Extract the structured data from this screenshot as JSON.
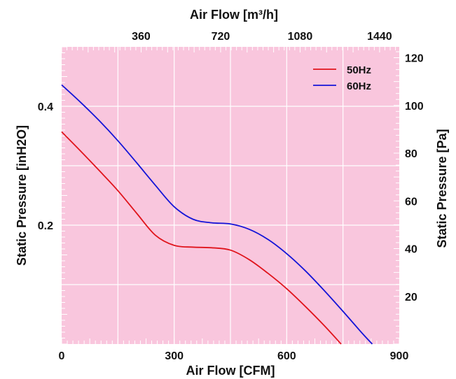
{
  "chart_data": {
    "type": "line",
    "title": "",
    "xlabel": "Air Flow  [CFM]",
    "x2label": "Air Flow  [m³/h]",
    "ylabel": "Static Pressure [inH2O]",
    "y2label": "Static Pressure [Pa]",
    "xlim": [
      0,
      900
    ],
    "ylim": [
      0,
      0.5
    ],
    "x_ticks": [
      {
        "value": 0,
        "label": "0"
      },
      {
        "value": 300,
        "label": "300"
      },
      {
        "value": 600,
        "label": "600"
      },
      {
        "value": 900,
        "label": "900"
      }
    ],
    "y_ticks": [
      {
        "value": 0.2,
        "label": "0.2"
      },
      {
        "value": 0.4,
        "label": "0.4"
      }
    ],
    "x2_ticks": [
      {
        "value": 360,
        "label": "360"
      },
      {
        "value": 720,
        "label": "720"
      },
      {
        "value": 1080,
        "label": "1080"
      },
      {
        "value": 1440,
        "label": "1440"
      }
    ],
    "y2_ticks": [
      {
        "value": 20,
        "label": "20"
      },
      {
        "value": 40,
        "label": "40"
      },
      {
        "value": 60,
        "label": "60"
      },
      {
        "value": 80,
        "label": "80"
      },
      {
        "value": 100,
        "label": "100"
      },
      {
        "value": 120,
        "label": "120"
      }
    ],
    "grid": true,
    "legend": "top-right",
    "background_color": "#f9c6dd",
    "series": [
      {
        "name": "50Hz",
        "color": "#e0141c",
        "points": [
          [
            0,
            0.357
          ],
          [
            50,
            0.325
          ],
          [
            100,
            0.292
          ],
          [
            150,
            0.258
          ],
          [
            200,
            0.22
          ],
          [
            250,
            0.183
          ],
          [
            300,
            0.166
          ],
          [
            350,
            0.163
          ],
          [
            400,
            0.162
          ],
          [
            450,
            0.158
          ],
          [
            500,
            0.142
          ],
          [
            550,
            0.119
          ],
          [
            600,
            0.093
          ],
          [
            650,
            0.063
          ],
          [
            700,
            0.031
          ],
          [
            745,
            0.0
          ]
        ]
      },
      {
        "name": "60Hz",
        "color": "#1414d8",
        "points": [
          [
            0,
            0.436
          ],
          [
            50,
            0.407
          ],
          [
            100,
            0.376
          ],
          [
            150,
            0.342
          ],
          [
            200,
            0.305
          ],
          [
            250,
            0.267
          ],
          [
            300,
            0.231
          ],
          [
            350,
            0.21
          ],
          [
            400,
            0.204
          ],
          [
            450,
            0.202
          ],
          [
            500,
            0.193
          ],
          [
            550,
            0.176
          ],
          [
            600,
            0.152
          ],
          [
            650,
            0.123
          ],
          [
            700,
            0.09
          ],
          [
            750,
            0.055
          ],
          [
            800,
            0.019
          ],
          [
            828,
            0.0
          ]
        ]
      }
    ]
  }
}
